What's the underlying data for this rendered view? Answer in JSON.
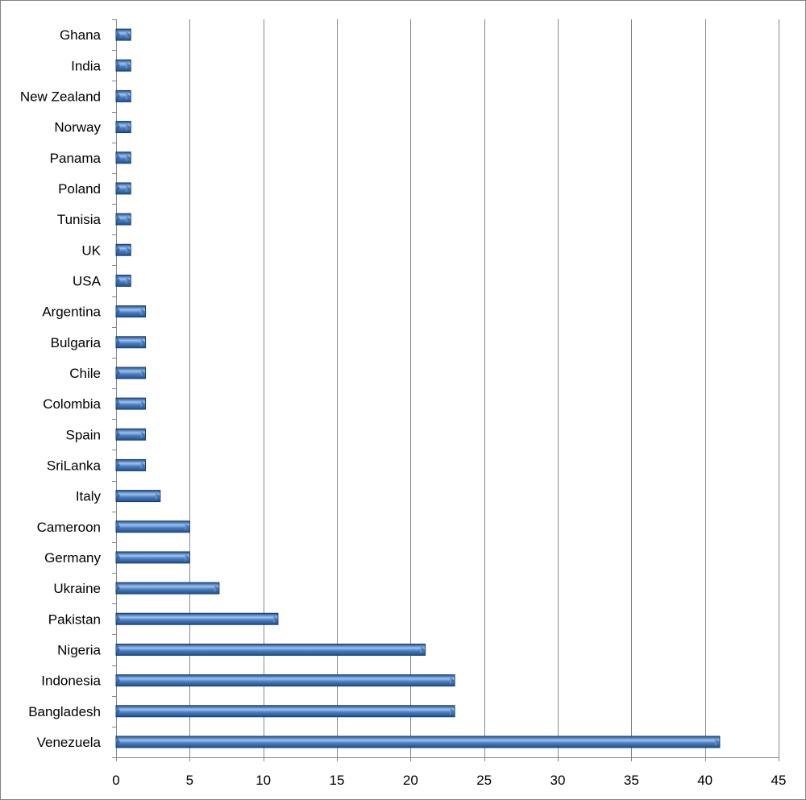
{
  "chart_data": {
    "type": "bar",
    "orientation": "horizontal",
    "categories": [
      "Ghana",
      "India",
      "New Zealand",
      "Norway",
      "Panama",
      "Poland",
      "Tunisia",
      "UK",
      "USA",
      "Argentina",
      "Bulgaria",
      "Chile",
      "Colombia",
      "Spain",
      "SriLanka",
      "Italy",
      "Cameroon",
      "Germany",
      "Ukraine",
      "Pakistan",
      "Nigeria",
      "Indonesia",
      "Bangladesh",
      "Venezuela"
    ],
    "values": [
      1,
      1,
      1,
      1,
      1,
      1,
      1,
      1,
      1,
      2,
      2,
      2,
      2,
      2,
      2,
      3,
      5,
      5,
      7,
      11,
      21,
      23,
      23,
      41
    ],
    "title": "",
    "xlabel": "",
    "ylabel": "",
    "xlim": [
      0,
      45
    ],
    "xticks": [
      0,
      5,
      10,
      15,
      20,
      25,
      30,
      35,
      40,
      45
    ],
    "grid": "vertical major gridlines",
    "legend": "none",
    "bar_color": "#4a7ebf",
    "bar_color_light": "#9dc3f0",
    "bar_color_dark": "#1f4f8f",
    "bar_outline": "#1c3f6e"
  }
}
